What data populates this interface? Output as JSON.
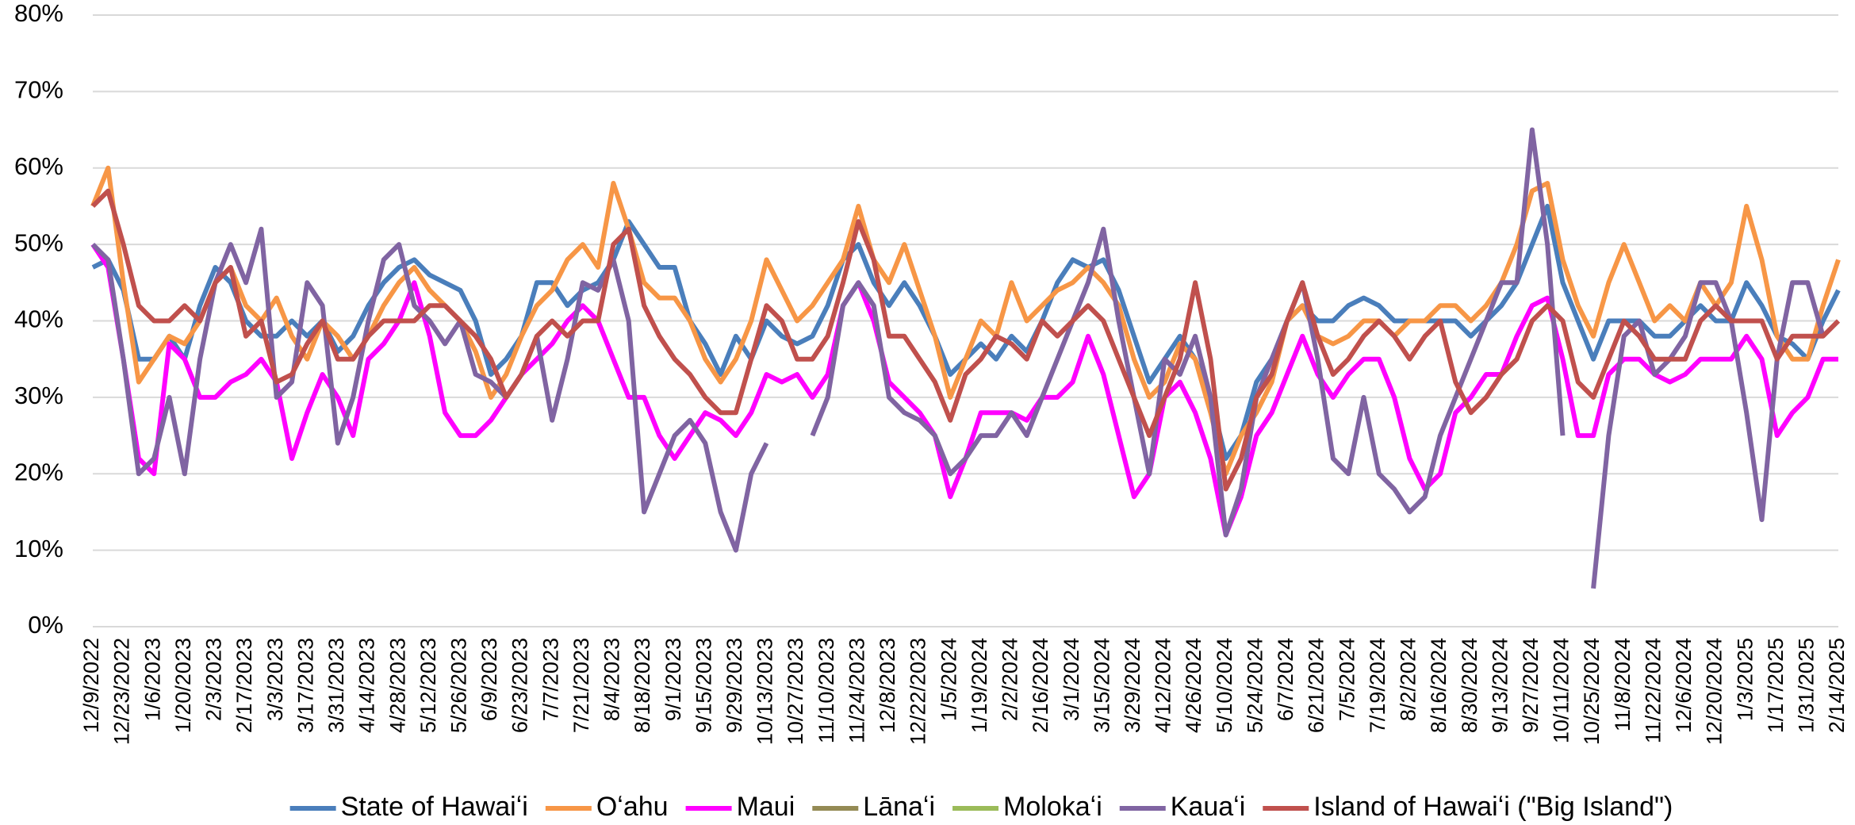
{
  "chart_data": {
    "type": "line",
    "categories": [
      "12/9/2022",
      null,
      "12/23/2022",
      null,
      "1/6/2023",
      null,
      "1/20/2023",
      null,
      "2/3/2023",
      null,
      "2/17/2023",
      null,
      "3/3/2023",
      null,
      "3/17/2023",
      null,
      "3/31/2023",
      null,
      "4/14/2023",
      null,
      "4/28/2023",
      null,
      "5/12/2023",
      null,
      "5/26/2023",
      null,
      "6/9/2023",
      null,
      "6/23/2023",
      null,
      "7/7/2023",
      null,
      "7/21/2023",
      null,
      "8/4/2023",
      null,
      "8/18/2023",
      null,
      "9/1/2023",
      null,
      "9/15/2023",
      null,
      "9/29/2023",
      null,
      "10/13/2023",
      null,
      "10/27/2023",
      null,
      "11/10/2023",
      null,
      "11/24/2023",
      null,
      "12/8/2023",
      null,
      "12/22/2023",
      null,
      "1/5/2024",
      null,
      "1/19/2024",
      null,
      "2/2/2024",
      null,
      "2/16/2024",
      null,
      "3/1/2024",
      null,
      "3/15/2024",
      null,
      "3/29/2024",
      null,
      "4/12/2024",
      null,
      "4/26/2024",
      null,
      "5/10/2024",
      null,
      "5/24/2024",
      null,
      "6/7/2024",
      null,
      "6/21/2024",
      null,
      "7/5/2024",
      null,
      "7/19/2024",
      null,
      "8/2/2024",
      null,
      "8/16/2024",
      null,
      "8/30/2024",
      null,
      "9/13/2024",
      null,
      "9/27/2024",
      null,
      "10/11/2024",
      null,
      "10/25/2024",
      null,
      "11/8/2024",
      null,
      "11/22/2024",
      null,
      "12/6/2024",
      null,
      "12/20/2024",
      null,
      "1/3/2025",
      null,
      "1/17/2025",
      null,
      "1/31/2025",
      null,
      "2/14/2025"
    ],
    "series": [
      {
        "name": "State of Hawaiʻi",
        "color": "#4a7ebb",
        "values": [
          47,
          48,
          44,
          35,
          35,
          38,
          35,
          42,
          47,
          45,
          40,
          38,
          38,
          40,
          38,
          40,
          36,
          38,
          42,
          45,
          47,
          48,
          46,
          45,
          44,
          40,
          33,
          35,
          38,
          45,
          45,
          42,
          44,
          45,
          48,
          53,
          50,
          47,
          47,
          40,
          37,
          33,
          38,
          35,
          40,
          38,
          37,
          38,
          42,
          48,
          50,
          45,
          42,
          45,
          42,
          38,
          33,
          35,
          37,
          35,
          38,
          36,
          40,
          45,
          48,
          47,
          48,
          44,
          38,
          32,
          35,
          38,
          35,
          30,
          22,
          25,
          32,
          35,
          40,
          42,
          40,
          40,
          42,
          43,
          42,
          40,
          40,
          40,
          40,
          40,
          38,
          40,
          42,
          45,
          50,
          55,
          45,
          40,
          35,
          40,
          40,
          40,
          38,
          38,
          40,
          42,
          40,
          40,
          45,
          42,
          38,
          37,
          35,
          40,
          44
        ]
      },
      {
        "name": "Oʻahu",
        "color": "#f79646",
        "values": [
          55,
          60,
          45,
          32,
          35,
          38,
          37,
          40,
          45,
          47,
          42,
          40,
          43,
          38,
          35,
          40,
          38,
          35,
          38,
          42,
          45,
          47,
          44,
          42,
          40,
          36,
          30,
          33,
          38,
          42,
          44,
          48,
          50,
          47,
          58,
          52,
          45,
          43,
          43,
          40,
          35,
          32,
          35,
          40,
          48,
          44,
          40,
          42,
          45,
          48,
          55,
          48,
          45,
          50,
          44,
          38,
          30,
          35,
          40,
          38,
          45,
          40,
          42,
          44,
          45,
          47,
          45,
          42,
          35,
          30,
          32,
          37,
          35,
          28,
          20,
          25,
          28,
          32,
          40,
          42,
          38,
          37,
          38,
          40,
          40,
          38,
          40,
          40,
          42,
          42,
          40,
          42,
          45,
          50,
          57,
          58,
          48,
          42,
          38,
          45,
          50,
          45,
          40,
          42,
          40,
          45,
          42,
          45,
          55,
          48,
          38,
          35,
          35,
          42,
          48
        ]
      },
      {
        "name": "Maui",
        "color": "#ff00ff",
        "values": [
          50,
          47,
          35,
          22,
          20,
          37,
          35,
          30,
          30,
          32,
          33,
          35,
          32,
          22,
          28,
          33,
          30,
          25,
          35,
          37,
          40,
          45,
          38,
          28,
          25,
          25,
          27,
          30,
          33,
          35,
          37,
          40,
          42,
          40,
          35,
          30,
          30,
          25,
          22,
          25,
          28,
          27,
          25,
          28,
          33,
          32,
          33,
          30,
          33,
          42,
          45,
          40,
          32,
          30,
          28,
          25,
          17,
          22,
          28,
          28,
          28,
          27,
          30,
          30,
          32,
          38,
          33,
          25,
          17,
          20,
          30,
          32,
          28,
          22,
          12,
          17,
          25,
          28,
          33,
          38,
          33,
          30,
          33,
          35,
          35,
          30,
          22,
          18,
          20,
          28,
          30,
          33,
          33,
          38,
          42,
          43,
          35,
          25,
          25,
          33,
          35,
          35,
          33,
          32,
          33,
          35,
          35,
          35,
          38,
          35,
          25,
          28,
          30,
          35,
          35
        ]
      },
      {
        "name": "Lānaʻi",
        "color": "#948a54",
        "values": [
          null,
          null,
          null,
          null,
          null,
          null,
          null,
          null,
          null,
          null,
          null,
          null,
          null,
          null,
          null,
          null,
          null,
          null,
          null,
          null,
          null,
          null,
          null,
          null,
          null,
          null,
          null,
          null,
          null,
          null,
          null,
          null,
          null,
          null,
          null,
          null,
          null,
          null,
          null,
          null,
          null,
          null,
          null,
          null,
          null,
          null,
          null,
          null,
          null,
          null,
          null,
          null,
          null,
          null,
          null,
          null,
          null,
          null,
          null,
          null,
          null,
          null,
          null,
          null,
          null,
          null,
          null,
          null,
          null,
          null,
          null,
          null,
          null,
          null,
          null,
          null,
          null,
          null,
          null,
          null,
          null,
          null,
          null,
          null,
          null,
          null,
          null,
          null,
          null,
          null,
          null,
          null,
          null,
          null,
          null,
          null,
          null,
          null,
          null,
          null,
          null,
          null,
          null,
          null,
          null,
          null,
          null,
          null,
          null,
          null,
          null,
          null,
          null,
          null,
          null
        ]
      },
      {
        "name": "Molokaʻi",
        "color": "#9bbb59",
        "values": [
          null,
          null,
          null,
          null,
          null,
          null,
          null,
          null,
          null,
          null,
          null,
          null,
          null,
          null,
          null,
          null,
          null,
          null,
          null,
          null,
          null,
          null,
          null,
          null,
          null,
          null,
          null,
          null,
          null,
          null,
          null,
          null,
          null,
          null,
          null,
          null,
          null,
          null,
          null,
          null,
          null,
          null,
          null,
          null,
          null,
          null,
          null,
          null,
          null,
          null,
          null,
          null,
          null,
          null,
          null,
          null,
          null,
          null,
          null,
          null,
          null,
          null,
          null,
          null,
          null,
          null,
          null,
          null,
          null,
          null,
          null,
          null,
          null,
          null,
          null,
          null,
          null,
          null,
          null,
          null,
          null,
          null,
          null,
          null,
          null,
          null,
          null,
          null,
          null,
          null,
          null,
          null,
          null,
          null,
          null,
          null,
          null,
          null,
          null,
          null,
          null,
          null,
          null,
          null,
          null,
          null,
          null,
          null,
          null,
          null,
          null,
          null,
          null,
          null,
          null
        ]
      },
      {
        "name": "Kauaʻi",
        "color": "#8064a2",
        "values": [
          50,
          48,
          35,
          20,
          22,
          30,
          20,
          35,
          45,
          50,
          45,
          52,
          30,
          32,
          45,
          42,
          24,
          30,
          40,
          48,
          50,
          42,
          40,
          37,
          40,
          33,
          32,
          30,
          33,
          38,
          27,
          35,
          45,
          44,
          48,
          40,
          15,
          20,
          25,
          27,
          24,
          15,
          10,
          20,
          24,
          null,
          null,
          25,
          30,
          42,
          45,
          42,
          30,
          28,
          27,
          25,
          20,
          22,
          25,
          25,
          28,
          25,
          30,
          35,
          40,
          45,
          52,
          40,
          30,
          20,
          35,
          33,
          38,
          30,
          12,
          18,
          30,
          35,
          40,
          45,
          35,
          22,
          20,
          30,
          20,
          18,
          15,
          17,
          25,
          30,
          35,
          40,
          45,
          45,
          65,
          50,
          25,
          null,
          5,
          25,
          38,
          40,
          33,
          35,
          38,
          45,
          45,
          40,
          28,
          14,
          35,
          45,
          45,
          38,
          null
        ]
      },
      {
        "name": "Island of Hawaiʻi (\"Big Island\")",
        "color": "#c0504d",
        "values": [
          55,
          57,
          50,
          42,
          40,
          40,
          42,
          40,
          45,
          47,
          38,
          40,
          32,
          33,
          37,
          40,
          35,
          35,
          38,
          40,
          40,
          40,
          42,
          42,
          40,
          38,
          35,
          30,
          33,
          38,
          40,
          38,
          40,
          40,
          50,
          52,
          42,
          38,
          35,
          33,
          30,
          28,
          28,
          35,
          42,
          40,
          35,
          35,
          38,
          45,
          53,
          48,
          38,
          38,
          35,
          32,
          27,
          33,
          35,
          38,
          37,
          35,
          40,
          38,
          40,
          42,
          40,
          35,
          30,
          25,
          30,
          35,
          45,
          35,
          18,
          22,
          30,
          33,
          40,
          45,
          38,
          33,
          35,
          38,
          40,
          38,
          35,
          38,
          40,
          32,
          28,
          30,
          33,
          35,
          40,
          42,
          40,
          32,
          30,
          35,
          40,
          38,
          35,
          35,
          35,
          40,
          42,
          40,
          40,
          40,
          35,
          38,
          38,
          38,
          40
        ]
      }
    ],
    "ylim": [
      0,
      80
    ],
    "yticks": [
      {
        "value": 0,
        "label": "0%"
      },
      {
        "value": 10,
        "label": "10%"
      },
      {
        "value": 20,
        "label": "20%"
      },
      {
        "value": 30,
        "label": "30%"
      },
      {
        "value": 40,
        "label": "40%"
      },
      {
        "value": 50,
        "label": "50%"
      },
      {
        "value": 60,
        "label": "60%"
      },
      {
        "value": 70,
        "label": "70%"
      },
      {
        "value": 80,
        "label": "80%"
      }
    ],
    "grid": true,
    "legend": "bottom"
  }
}
